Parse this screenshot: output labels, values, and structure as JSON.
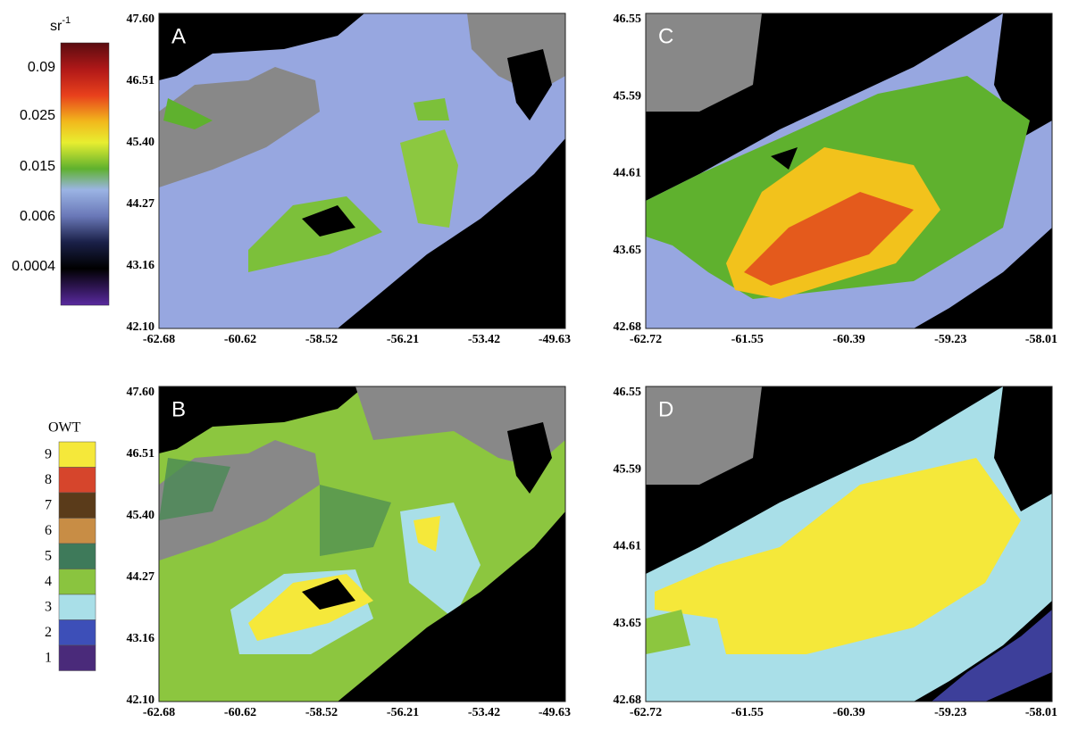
{
  "colorbar": {
    "unit": "sr",
    "unit_exponent": "-1",
    "labels": [
      "0.09",
      "0.025",
      "0.015",
      "0.006",
      "0.0004"
    ]
  },
  "owt_legend": {
    "title": "OWT",
    "classes": [
      "9",
      "8",
      "7",
      "6",
      "5",
      "4",
      "3",
      "2",
      "1"
    ]
  },
  "panels": [
    {
      "label": "A",
      "yticks": [
        "47.60",
        "46.51",
        "45.40",
        "44.27",
        "43.16",
        "42.10"
      ],
      "xticks": [
        "-62.68",
        "-60.62",
        "-58.52",
        "-56.21",
        "-53.42",
        "-49.63"
      ]
    },
    {
      "label": "B",
      "yticks": [
        "47.60",
        "46.51",
        "45.40",
        "44.27",
        "43.16",
        "42.10"
      ],
      "xticks": [
        "-62.68",
        "-60.62",
        "-58.52",
        "-56.21",
        "-53.42",
        "-49.63"
      ]
    },
    {
      "label": "C",
      "yticks": [
        "46.55",
        "45.59",
        "44.61",
        "43.65",
        "42.68"
      ],
      "xticks": [
        "-62.72",
        "-61.55",
        "-60.39",
        "-59.23",
        "-58.01"
      ]
    },
    {
      "label": "D",
      "yticks": [
        "46.55",
        "45.59",
        "44.61",
        "43.65",
        "42.68"
      ],
      "xticks": [
        "-62.72",
        "-61.55",
        "-60.39",
        "-59.23",
        "-58.01"
      ]
    }
  ]
}
